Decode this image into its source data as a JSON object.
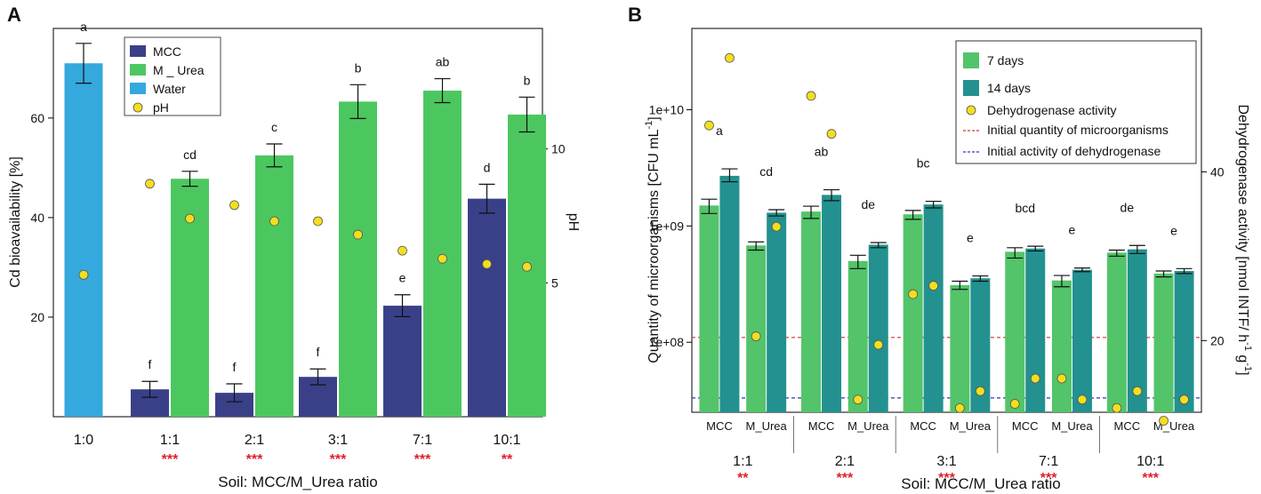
{
  "colors": {
    "mcc": "#3a4088",
    "m_urea": "#4cc760",
    "water": "#35a8de",
    "d7": "#53c46a",
    "d14": "#23918f",
    "marker": "#f3de1f",
    "significance": "#e0202a",
    "line_microbes": "#d03030",
    "line_dehydrogenase": "#2a3aa8"
  },
  "chart_data": [
    {
      "type": "bar",
      "panel": "A",
      "xlabel": "Soil: MCC/M_Urea ratio",
      "ylabel": "Cd bioavailability [%]",
      "y2label": "pH",
      "ylim": [
        0,
        78
      ],
      "y2lim": [
        0,
        14.5
      ],
      "yticks": [
        20,
        40,
        60
      ],
      "y2ticks": [
        5,
        10
      ],
      "categories": [
        "1:0",
        "1:1",
        "2:1",
        "3:1",
        "7:1",
        "10:1"
      ],
      "significance": [
        "",
        "***",
        "***",
        "***",
        "***",
        "**"
      ],
      "legend": [
        "MCC",
        "M _ Urea",
        "Water",
        "pH"
      ],
      "series": [
        {
          "name": "Water",
          "key": "water",
          "values": [
            71,
            null,
            null,
            null,
            null,
            null
          ],
          "errors": [
            4,
            null,
            null,
            null,
            null,
            null
          ],
          "letters": [
            "a",
            "",
            "",
            "",
            "",
            ""
          ],
          "ph": [
            5.3,
            null,
            null,
            null,
            null,
            null
          ]
        },
        {
          "name": "MCC",
          "key": "mcc",
          "values": [
            null,
            5.5,
            4.8,
            8.0,
            22.3,
            43.8
          ],
          "errors": [
            null,
            1.6,
            1.8,
            1.6,
            2.2,
            2.9
          ],
          "letters": [
            "",
            "f",
            "f",
            "f",
            "e",
            "d"
          ],
          "ph": [
            null,
            8.7,
            7.9,
            7.3,
            6.2,
            5.7
          ]
        },
        {
          "name": "M _ Urea",
          "key": "m_urea",
          "values": [
            null,
            47.8,
            52.5,
            63.3,
            65.5,
            60.7
          ],
          "errors": [
            null,
            1.5,
            2.3,
            3.4,
            2.4,
            3.5
          ],
          "letters": [
            "",
            "cd",
            "c",
            "b",
            "ab",
            "b"
          ],
          "ph": [
            null,
            7.4,
            7.3,
            6.8,
            5.9,
            5.6
          ]
        }
      ]
    },
    {
      "type": "bar",
      "panel": "B",
      "xlabel": "Soil: MCC/M_Urea ratio",
      "ylabel": "Quantity of microorganisms [CFU mL",
      "ylabel_sup": "-1",
      "y2label": "Dehydrogenase activity [nmol INTF/ h",
      "y2label_sup1": "-1",
      "y2label_mid": " g",
      "y2label_sup2": "-1",
      "y2label_end": "]",
      "yscale": "log",
      "ylim": [
        25000000,
        50000000000
      ],
      "yticks": [
        "1e+08",
        "1e+09",
        "1e+10"
      ],
      "y2lim": [
        11.5,
        57
      ],
      "y2ticks": [
        20,
        40
      ],
      "groups": [
        "1:1",
        "2:1",
        "3:1",
        "7:1",
        "10:1"
      ],
      "subgroups": [
        "MCC",
        "M_Urea"
      ],
      "significance": [
        "**",
        "***",
        "***",
        "***",
        "***"
      ],
      "letters": [
        "a",
        "cd",
        "ab",
        "de",
        "bc",
        "e",
        "bcd",
        "e",
        "de",
        "e"
      ],
      "legend": [
        "7 days",
        "14 days",
        "Dehydrogenase activity",
        "Initial quantity of microorganisms",
        "Initial activity of dehydrogenase"
      ],
      "series": [
        {
          "name": "7 days",
          "key": "d7",
          "values": [
            1500000000,
            680000000,
            1330000000,
            500000000,
            1260000000,
            310000000,
            600000000,
            340000000,
            590000000,
            390000000
          ],
          "err_lo": [
            1280000000,
            620000000,
            1160000000,
            430000000,
            1140000000,
            285000000,
            530000000,
            300000000,
            550000000,
            365000000
          ],
          "err_hi": [
            1700000000,
            730000000,
            1480000000,
            560000000,
            1360000000,
            335000000,
            650000000,
            375000000,
            620000000,
            410000000
          ],
          "dehydrogenase": [
            45.5,
            20.5,
            49.0,
            13.0,
            25.5,
            12.0,
            12.5,
            15.5,
            12.0,
            10.5
          ]
        },
        {
          "name": "14 days",
          "key": "d14",
          "values": [
            2700000000,
            1300000000,
            1850000000,
            690000000,
            1530000000,
            355000000,
            640000000,
            420000000,
            630000000,
            410000000
          ],
          "err_lo": [
            2400000000,
            1220000000,
            1650000000,
            650000000,
            1430000000,
            335000000,
            610000000,
            405000000,
            580000000,
            390000000
          ],
          "err_hi": [
            3100000000,
            1380000000,
            2050000000,
            720000000,
            1630000000,
            372000000,
            670000000,
            435000000,
            680000000,
            430000000
          ],
          "dehydrogenase": [
            53.5,
            33.5,
            44.5,
            19.5,
            26.5,
            14.0,
            15.5,
            13.0,
            14.0,
            13.0
          ]
        }
      ],
      "initial_microbes": 110000000,
      "initial_dehydrogenase": 13.2
    }
  ],
  "panel_labels": [
    "A",
    "B"
  ]
}
